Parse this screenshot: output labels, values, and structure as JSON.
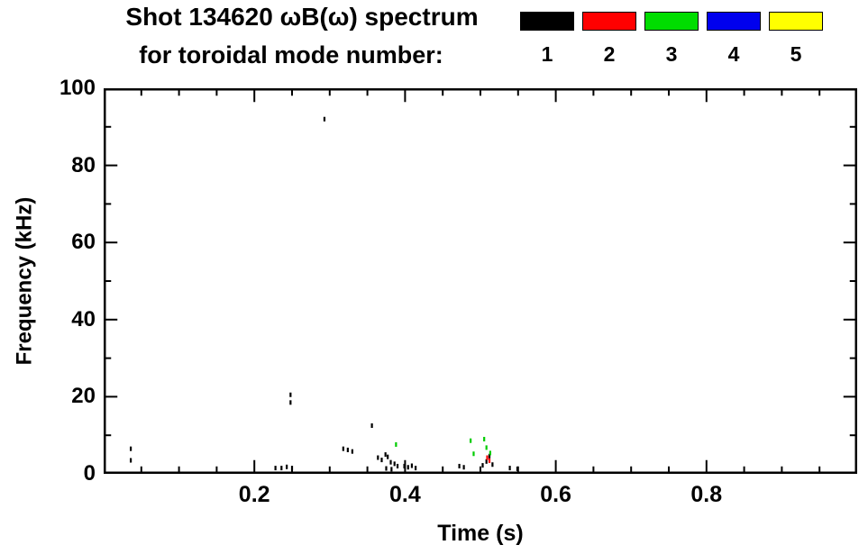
{
  "title": {
    "line1": "Shot 134620 ωB(ω) spectrum",
    "line2": "for toroidal mode number:"
  },
  "legend": {
    "entries": [
      {
        "label": "1",
        "color": "#000000"
      },
      {
        "label": "2",
        "color": "#ff0000"
      },
      {
        "label": "3",
        "color": "#00dd00"
      },
      {
        "label": "4",
        "color": "#0000ee"
      },
      {
        "label": "5",
        "color": "#ffff00"
      }
    ]
  },
  "chart_data": {
    "type": "scatter",
    "title": "Shot 134620 ωB(ω) spectrum for toroidal mode number",
    "xlabel": "Time (s)",
    "ylabel": "Frequency (kHz)",
    "xlim": [
      0.0,
      1.0
    ],
    "ylim": [
      0,
      100
    ],
    "x_major_ticks": [
      0.2,
      0.4,
      0.6,
      0.8
    ],
    "x_minor_step": 0.05,
    "y_major_ticks": [
      0,
      20,
      40,
      60,
      80,
      100
    ],
    "y_minor_step": 10,
    "grid": false,
    "legend_position": "top-right",
    "series": [
      {
        "name": "n=1",
        "color": "#000000",
        "points": [
          [
            0.036,
            6.5
          ],
          [
            0.036,
            3.5
          ],
          [
            0.228,
            1.5
          ],
          [
            0.236,
            1.5
          ],
          [
            0.243,
            1.8
          ],
          [
            0.25,
            1.5
          ],
          [
            0.248,
            20.5
          ],
          [
            0.248,
            18.5
          ],
          [
            0.293,
            92.0
          ],
          [
            0.318,
            6.5
          ],
          [
            0.324,
            6.2
          ],
          [
            0.33,
            5.8
          ],
          [
            0.356,
            12.5
          ],
          [
            0.364,
            4.2
          ],
          [
            0.369,
            3.6
          ],
          [
            0.374,
            5.0
          ],
          [
            0.377,
            4.4
          ],
          [
            0.381,
            3.0
          ],
          [
            0.386,
            2.6
          ],
          [
            0.39,
            2.0
          ],
          [
            0.375,
            1.4
          ],
          [
            0.382,
            1.2
          ],
          [
            0.399,
            2.0
          ],
          [
            0.404,
            1.7
          ],
          [
            0.409,
            2.1
          ],
          [
            0.414,
            1.5
          ],
          [
            0.472,
            2.0
          ],
          [
            0.478,
            1.7
          ],
          [
            0.503,
            2.2
          ],
          [
            0.508,
            3.2
          ],
          [
            0.512,
            4.6
          ],
          [
            0.516,
            2.4
          ],
          [
            0.539,
            1.5
          ],
          [
            0.549,
            1.3
          ]
        ]
      },
      {
        "name": "n=2",
        "color": "#ff0000",
        "points": [
          [
            0.509,
            4.2
          ],
          [
            0.512,
            3.4
          ]
        ]
      },
      {
        "name": "n=3",
        "color": "#00cc00",
        "points": [
          [
            0.388,
            7.6
          ],
          [
            0.487,
            8.6
          ],
          [
            0.491,
            5.2
          ],
          [
            0.505,
            9.0
          ],
          [
            0.508,
            6.8
          ],
          [
            0.513,
            5.4
          ]
        ]
      },
      {
        "name": "n=4",
        "color": "#0000ee",
        "points": []
      },
      {
        "name": "n=5",
        "color": "#ffff00",
        "points": []
      }
    ]
  }
}
